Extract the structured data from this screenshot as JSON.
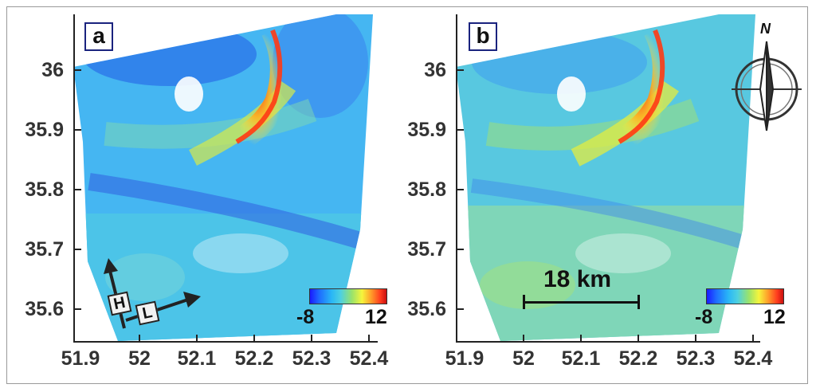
{
  "panels": [
    {
      "label": "a",
      "y_ticks": [
        "36",
        "35.9",
        "35.8",
        "35.7",
        "35.6"
      ],
      "x_ticks": [
        "51.9",
        "52",
        "52.1",
        "52.2",
        "52.3",
        "52.4"
      ],
      "colorbar": {
        "min": "-8",
        "max": "12"
      },
      "look_direction": {
        "heading": "H",
        "look": "L"
      }
    },
    {
      "label": "b",
      "y_ticks": [
        "36",
        "35.9",
        "35.8",
        "35.7",
        "35.6"
      ],
      "x_ticks": [
        "51.9",
        "52",
        "52.1",
        "52.2",
        "52.3",
        "52.4"
      ],
      "colorbar": {
        "min": "-8",
        "max": "12"
      },
      "scale_bar": "18 km",
      "north_label": "N"
    }
  ],
  "colors": {
    "deformation_low": "#1a1aff",
    "deformation_mid": "#f5f53c",
    "deformation_high": "#c81010"
  }
}
